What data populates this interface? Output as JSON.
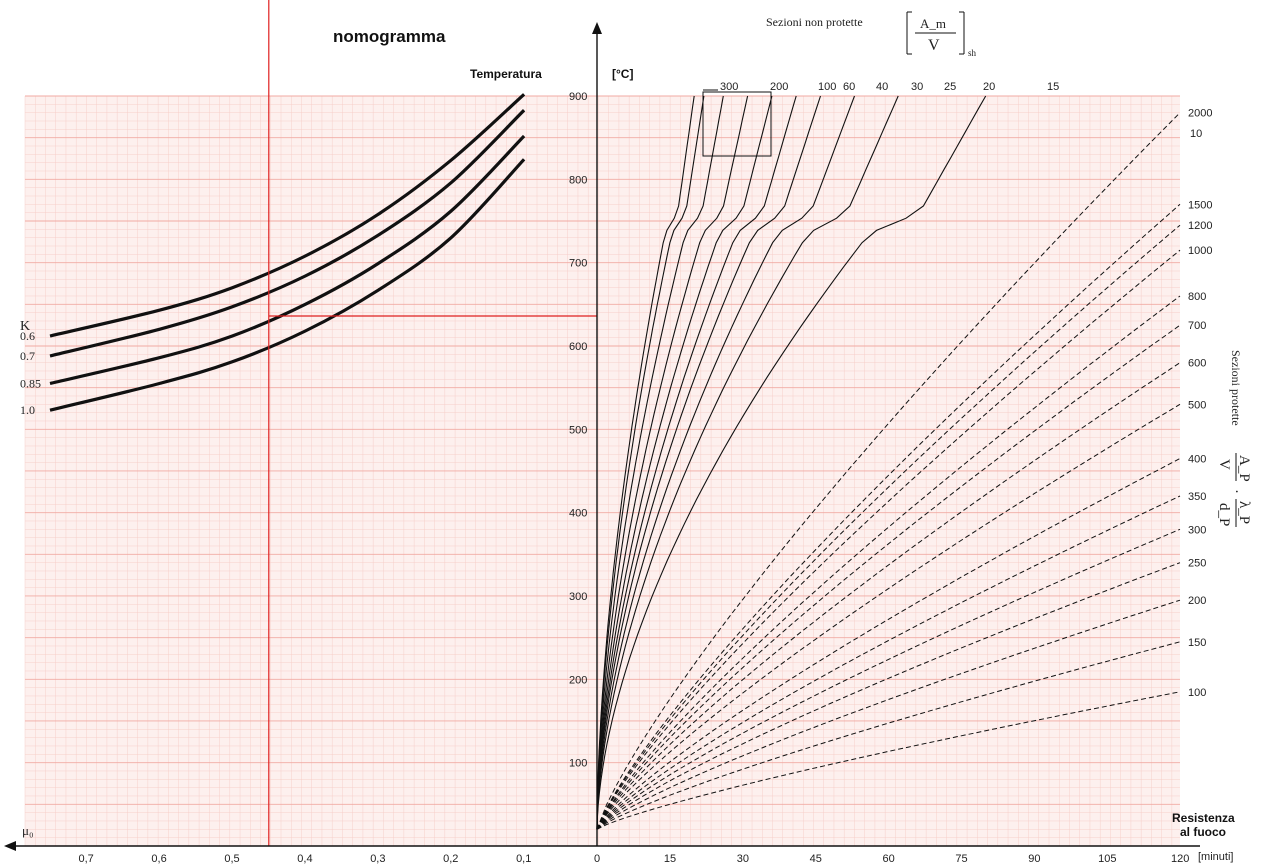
{
  "chart_data": {
    "type": "line",
    "title": "nomogramma",
    "left_panel": {
      "x_axis_label": "μ₀",
      "x_ticks": [
        "0,7",
        "0,6",
        "0,5",
        "0,4",
        "0,3",
        "0,2",
        "0,1"
      ],
      "k_label": "K",
      "series": [
        {
          "name": "0.6",
          "points": [
            [
              0.75,
              612
            ],
            [
              0.6,
              643
            ],
            [
              0.5,
              670
            ],
            [
              0.4,
              708
            ],
            [
              0.3,
              758
            ],
            [
              0.2,
              823
            ],
            [
              0.1,
              902
            ]
          ]
        },
        {
          "name": "0.7",
          "points": [
            [
              0.75,
              588
            ],
            [
              0.6,
              620
            ],
            [
              0.5,
              647
            ],
            [
              0.4,
              684
            ],
            [
              0.3,
              733
            ],
            [
              0.2,
              796
            ],
            [
              0.1,
              883
            ]
          ]
        },
        {
          "name": "0.85",
          "points": [
            [
              0.75,
              555
            ],
            [
              0.6,
              586
            ],
            [
              0.5,
              612
            ],
            [
              0.4,
              650
            ],
            [
              0.3,
              699
            ],
            [
              0.2,
              762
            ],
            [
              0.1,
              852
            ]
          ]
        },
        {
          "name": "1.0",
          "points": [
            [
              0.75,
              523
            ],
            [
              0.6,
              555
            ],
            [
              0.5,
              581
            ],
            [
              0.4,
              618
            ],
            [
              0.3,
              667
            ],
            [
              0.2,
              730
            ],
            [
              0.1,
              824
            ]
          ]
        }
      ],
      "marker_mu0": 0.45,
      "marker_temperature": 636
    },
    "right_panel": {
      "y_axis_label": "Temperatura",
      "y_unit": "[°C]",
      "y_ticks": [
        "100",
        "200",
        "300",
        "400",
        "500",
        "600",
        "700",
        "800",
        "900"
      ],
      "ylim": [
        0,
        900
      ],
      "x_axis_label_line1": "Resistenza",
      "x_axis_label_line2": "al fuoco",
      "x_unit": "[minuti]",
      "x_ticks": [
        "0",
        "15",
        "30",
        "45",
        "60",
        "75",
        "90",
        "105",
        "120"
      ],
      "xlim": [
        0,
        120
      ],
      "unprotected_title": "Sezioni non protette",
      "unprotected_formula_num": "A_m",
      "unprotected_formula_den": "V",
      "unprotected_formula_sub": "sh",
      "protected_title": "Sezioni protette",
      "protected_formula_a": "A_P",
      "protected_formula_b": "V",
      "protected_formula_c": "λ_P",
      "protected_formula_d": "d_P",
      "unprotected_series": [
        {
          "name": "300",
          "t90": 20
        },
        {
          "name": "200",
          "t90": 22
        },
        {
          "name": "100",
          "t90": 26
        },
        {
          "name": "60",
          "t90": 31
        },
        {
          "name": "40",
          "t90": 36
        },
        {
          "name": "30",
          "t90": 41
        },
        {
          "name": "25",
          "t90": 46
        },
        {
          "name": "20",
          "t90": 53
        },
        {
          "name": "15",
          "t90": 62
        },
        {
          "name": "10",
          "t90": 80
        }
      ],
      "unprotected_top_labels": [
        "300",
        "200",
        "100",
        "60",
        "40",
        "30",
        "25",
        "20",
        "15"
      ],
      "unprotected_right_label": "10",
      "protected_series": [
        {
          "name": "2000",
          "T120": 880
        },
        {
          "name": "1500",
          "T120": 770
        },
        {
          "name": "1200",
          "T120": 745
        },
        {
          "name": "1000",
          "T120": 715
        },
        {
          "name": "800",
          "T120": 660
        },
        {
          "name": "700",
          "T120": 625
        },
        {
          "name": "600",
          "T120": 580
        },
        {
          "name": "500",
          "T120": 530
        },
        {
          "name": "400",
          "T120": 465
        },
        {
          "name": "350",
          "T120": 420
        },
        {
          "name": "300",
          "T120": 380
        },
        {
          "name": "250",
          "T120": 340
        },
        {
          "name": "200",
          "T120": 295
        },
        {
          "name": "150",
          "T120": 245
        },
        {
          "name": "100",
          "T120": 185
        }
      ]
    }
  }
}
